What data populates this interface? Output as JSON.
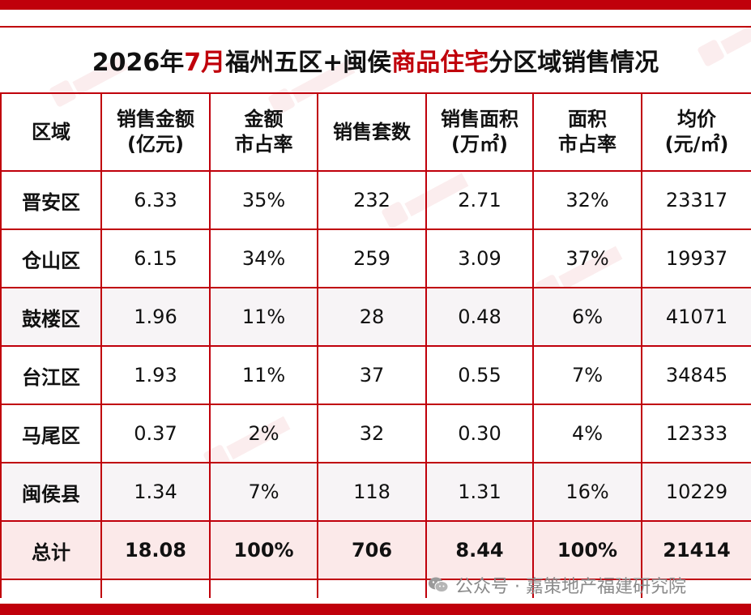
{
  "title": {
    "part1": "2026年",
    "part_red1": "7月",
    "part2": "福州五区+闽侯",
    "part_red2": "商品住宅",
    "part3": "分区域销售情况"
  },
  "table": {
    "headers": [
      {
        "line1": "区域",
        "line2": ""
      },
      {
        "line1": "销售金额",
        "line2": "(亿元)"
      },
      {
        "line1": "金额",
        "line2": "市占率"
      },
      {
        "line1": "销售套数",
        "line2": ""
      },
      {
        "line1": "销售面积",
        "line2": "(万㎡)"
      },
      {
        "line1": "面积",
        "line2": "市占率"
      },
      {
        "line1": "均价",
        "line2": "(元/㎡)"
      }
    ],
    "rows": [
      [
        "晋安区",
        "6.33",
        "35%",
        "232",
        "2.71",
        "32%",
        "23317"
      ],
      [
        "仓山区",
        "6.15",
        "34%",
        "259",
        "3.09",
        "37%",
        "19937"
      ],
      [
        "鼓楼区",
        "1.96",
        "11%",
        "28",
        "0.48",
        "6%",
        "41071"
      ],
      [
        "台江区",
        "1.93",
        "11%",
        "37",
        "0.55",
        "7%",
        "34845"
      ],
      [
        "马尾区",
        "0.37",
        "2%",
        "32",
        "0.30",
        "4%",
        "12333"
      ],
      [
        "闽侯县",
        "1.34",
        "7%",
        "118",
        "1.31",
        "16%",
        "10229"
      ]
    ],
    "total": [
      "总计",
      "18.08",
      "100%",
      "706",
      "8.44",
      "100%",
      "21414"
    ]
  },
  "credit": {
    "icon": "wechat-icon",
    "text": "公众号 · 嘉策地产福建研究院"
  },
  "colors": {
    "accent": "#c0000b",
    "shaded_row": "#f7f4f6",
    "total_row": "#fbe9e9"
  }
}
